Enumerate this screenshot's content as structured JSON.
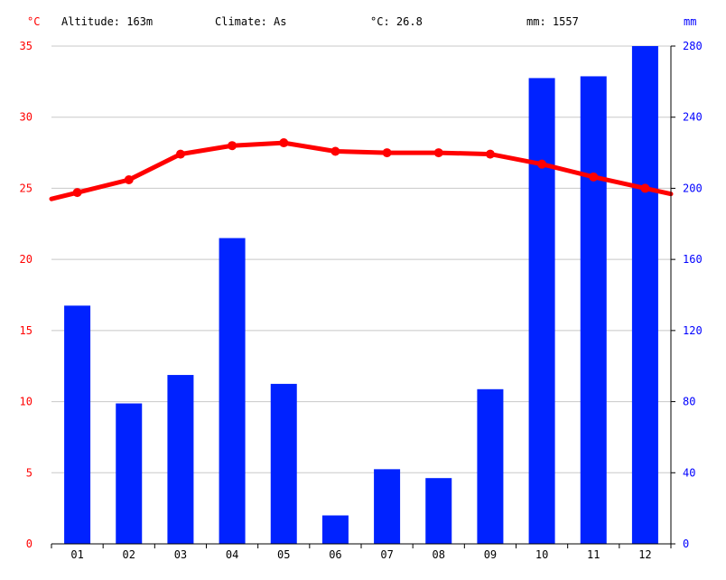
{
  "header": {
    "altitude": "Altitude: 163m",
    "climate": "Climate: As",
    "temp_avg": "°C: 26.8",
    "precip_total": "mm: 1557"
  },
  "chart_data": {
    "type": "bar+line",
    "categories": [
      "01",
      "02",
      "03",
      "04",
      "05",
      "06",
      "07",
      "08",
      "09",
      "10",
      "11",
      "12"
    ],
    "series": [
      {
        "type": "bar",
        "axis": "right",
        "color": "#0022ff",
        "values": [
          134,
          79,
          95,
          172,
          90,
          16,
          42,
          37,
          87,
          262,
          263,
          280
        ]
      },
      {
        "type": "line",
        "axis": "left",
        "color": "#ff0000",
        "values": [
          24.7,
          25.6,
          27.4,
          28.0,
          28.2,
          27.6,
          27.5,
          27.5,
          27.4,
          26.7,
          25.8,
          25.0
        ]
      }
    ],
    "left_axis": {
      "unit": "°C",
      "ylim": [
        0,
        35
      ],
      "ticks": [
        "0",
        "5",
        "10",
        "15",
        "20",
        "25",
        "30",
        "35"
      ],
      "color": "#ff0000"
    },
    "right_axis": {
      "unit": "mm",
      "ylim": [
        0,
        280
      ],
      "ticks": [
        "0",
        "40",
        "80",
        "120",
        "160",
        "200",
        "240",
        "280"
      ],
      "color": "#0000ff"
    },
    "grid": true
  }
}
